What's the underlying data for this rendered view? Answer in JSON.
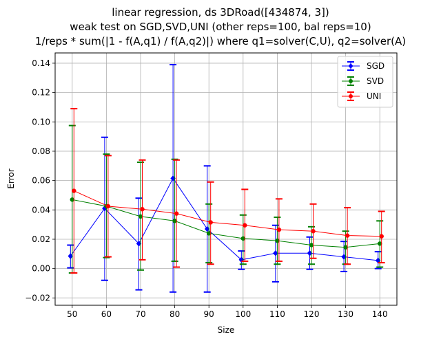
{
  "chart_data": {
    "type": "line",
    "title_lines": [
      "linear regression, ds 3DRoad([434874, 3])",
      "weak test on SGD,SVD,UNI (other reps=100, bal reps=10)",
      "1/reps * sum(|1 - f(A,q1) / f(A,q2)|) where q1=solver(C,U), q2=solver(A)"
    ],
    "xlabel": "Size",
    "ylabel": "Error",
    "x": [
      50,
      60,
      70,
      80,
      90,
      100,
      110,
      120,
      130,
      140
    ],
    "x_tick_labels": [
      "50",
      "60",
      "70",
      "80",
      "90",
      "100",
      "110",
      "120",
      "130",
      "140"
    ],
    "xlim": [
      45,
      145
    ],
    "ylim": [
      -0.025,
      0.147
    ],
    "y_ticks": [
      -0.02,
      0.0,
      0.02,
      0.04,
      0.06,
      0.08,
      0.1,
      0.12,
      0.14
    ],
    "y_tick_labels": [
      "−0.02",
      "0.00",
      "0.02",
      "0.04",
      "0.06",
      "0.08",
      "0.10",
      "0.12",
      "0.14"
    ],
    "grid": true,
    "legend_position": "top-right",
    "series": [
      {
        "name": "SGD",
        "color": "#0000ff",
        "marker": "diamond",
        "values": [
          0.0085,
          0.041,
          0.017,
          0.0615,
          0.027,
          0.006,
          0.0105,
          0.0105,
          0.008,
          0.0055
        ],
        "err_low": [
          0.0005,
          -0.008,
          -0.0145,
          -0.016,
          -0.016,
          -0.0005,
          -0.009,
          -0.0005,
          -0.002,
          0.0
        ],
        "err_high": [
          0.016,
          0.0895,
          0.048,
          0.139,
          0.07,
          0.012,
          0.0295,
          0.0215,
          0.0185,
          0.0115
        ]
      },
      {
        "name": "SVD",
        "color": "#008000",
        "marker": "circle",
        "values": [
          0.047,
          0.0425,
          0.0355,
          0.0325,
          0.024,
          0.0205,
          0.019,
          0.016,
          0.0145,
          0.017
        ],
        "err_low": [
          -0.003,
          0.0075,
          -0.001,
          0.005,
          0.004,
          0.003,
          0.003,
          0.003,
          0.003,
          0.001
        ],
        "err_high": [
          0.0975,
          0.078,
          0.0725,
          0.0745,
          0.044,
          0.0365,
          0.035,
          0.0285,
          0.0255,
          0.0325
        ]
      },
      {
        "name": "UNI",
        "color": "#ff0000",
        "marker": "circle",
        "values": [
          0.053,
          0.0425,
          0.0405,
          0.0375,
          0.0315,
          0.0295,
          0.0265,
          0.0255,
          0.0225,
          0.022
        ],
        "err_low": [
          -0.003,
          0.008,
          0.006,
          0.001,
          0.003,
          0.005,
          0.005,
          0.007,
          0.003,
          0.004
        ],
        "err_high": [
          0.109,
          0.077,
          0.074,
          0.074,
          0.059,
          0.054,
          0.0475,
          0.044,
          0.0415,
          0.039
        ]
      }
    ]
  }
}
